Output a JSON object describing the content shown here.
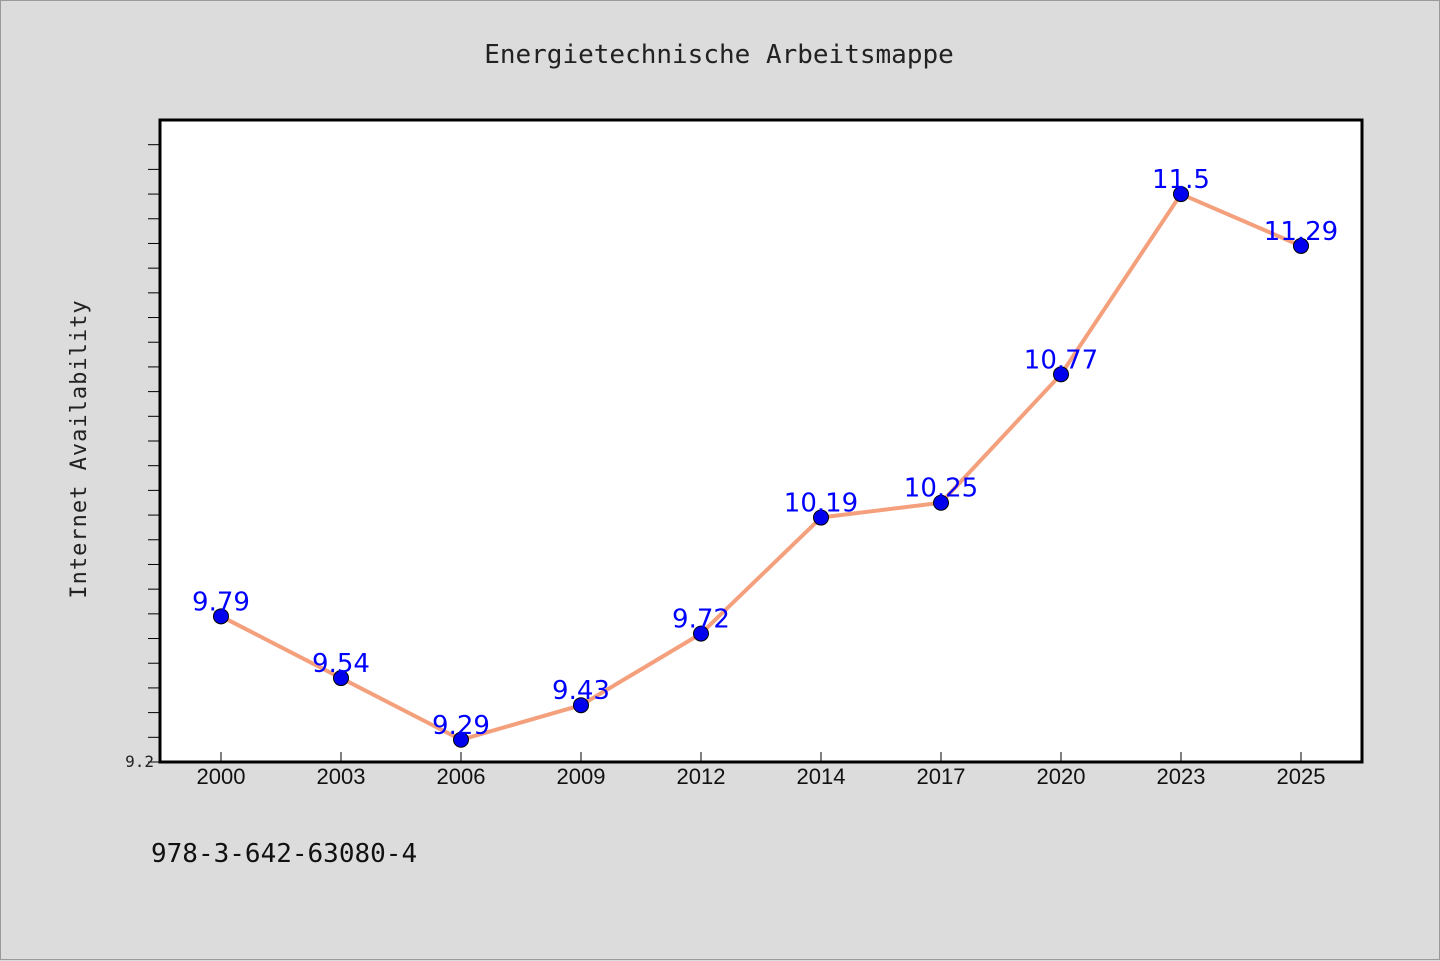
{
  "chart_data": {
    "type": "line",
    "title": "Energietechnische Arbeitsmappe",
    "xlabel": "",
    "ylabel": "Internet Availability",
    "categories": [
      "2000",
      "2003",
      "2006",
      "2009",
      "2012",
      "2014",
      "2017",
      "2020",
      "2023",
      "2025"
    ],
    "series": [
      {
        "values": [
          9.79,
          9.54,
          9.29,
          9.43,
          9.72,
          10.19,
          10.25,
          10.77,
          11.5,
          11.29
        ],
        "line_color": "#f4a07c",
        "marker_color": "#0000ee"
      }
    ],
    "data_labels": [
      "9.79",
      "9.54",
      "9.29",
      "9.43",
      "9.72",
      "10.19",
      "10.25",
      "10.77",
      "11.5",
      "11.29"
    ],
    "ylim": [
      9.2,
      11.8
    ],
    "y_tick_label": "9.2",
    "grid": false,
    "legend": false
  },
  "footer": {
    "isbn": "978-3-642-63080-4"
  },
  "colors": {
    "background": "#dcdcdc",
    "plot_background": "#ffffff",
    "label_color": "#0000ff"
  }
}
